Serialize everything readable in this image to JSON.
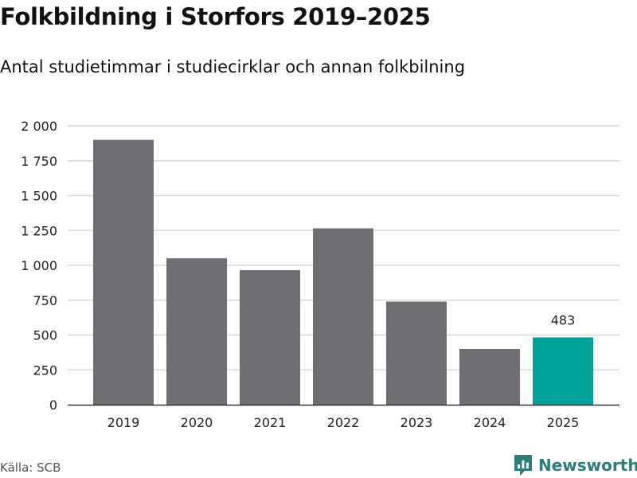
{
  "title": "Folkbildning i Storfors 2019–2025",
  "subtitle": "Antal studietimmar i studiecirklar och annan folkbilning",
  "source": "Källa: SCB",
  "brand": {
    "name": "Newsworthy",
    "icon": "newsworthy-logo-icon",
    "color": "#2e7d78"
  },
  "colors": {
    "bar": "#6f6e73",
    "highlight": "#00a39a",
    "grid": "#d9d9d9",
    "axis": "#333333"
  },
  "chart_data": {
    "type": "bar",
    "title": "Folkbildning i Storfors 2019–2025",
    "subtitle": "Antal studietimmar i studiecirklar och annan folkbilning",
    "xlabel": "",
    "ylabel": "",
    "categories": [
      "2019",
      "2020",
      "2021",
      "2022",
      "2023",
      "2024",
      "2025"
    ],
    "values": [
      1900,
      1050,
      965,
      1265,
      740,
      400,
      483
    ],
    "highlight_index": 6,
    "data_labels": [
      {
        "index": 6,
        "text": "483"
      }
    ],
    "ylim": [
      0,
      2000
    ],
    "yticks": [
      0,
      250,
      500,
      750,
      1000,
      1250,
      1500,
      1750,
      2000
    ],
    "ytick_labels": [
      "0",
      "250",
      "500",
      "750",
      "1 000",
      "1 250",
      "1 500",
      "1 750",
      "2 000"
    ],
    "grid": true,
    "legend": "none"
  }
}
